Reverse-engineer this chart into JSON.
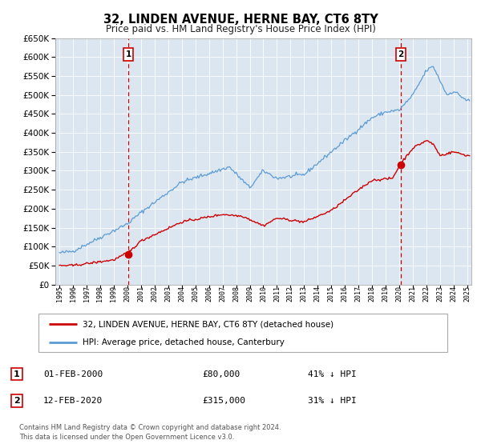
{
  "title": "32, LINDEN AVENUE, HERNE BAY, CT6 8TY",
  "subtitle": "Price paid vs. HM Land Registry's House Price Index (HPI)",
  "legend_entry1": "32, LINDEN AVENUE, HERNE BAY, CT6 8TY (detached house)",
  "legend_entry2": "HPI: Average price, detached house, Canterbury",
  "annotation1_label": "1",
  "annotation1_date": "01-FEB-2000",
  "annotation1_price": "£80,000",
  "annotation1_hpi": "41% ↓ HPI",
  "annotation2_label": "2",
  "annotation2_date": "12-FEB-2020",
  "annotation2_price": "£315,000",
  "annotation2_hpi": "31% ↓ HPI",
  "footer1": "Contains HM Land Registry data © Crown copyright and database right 2024.",
  "footer2": "This data is licensed under the Open Government Licence v3.0.",
  "sale1_year": 2000.08,
  "sale1_value": 80000,
  "sale2_year": 2020.12,
  "sale2_value": 315000,
  "price_color": "#cc0000",
  "hpi_color": "#5b9bd5",
  "vline_color": "#cc0000",
  "dot_color": "#cc0000",
  "background_color": "#dce6f1",
  "ylim_max": 650000,
  "yticks": [
    0,
    50000,
    100000,
    150000,
    200000,
    250000,
    300000,
    350000,
    400000,
    450000,
    500000,
    550000,
    600000,
    650000
  ],
  "xlim_start": 1994.7,
  "xlim_end": 2025.3
}
